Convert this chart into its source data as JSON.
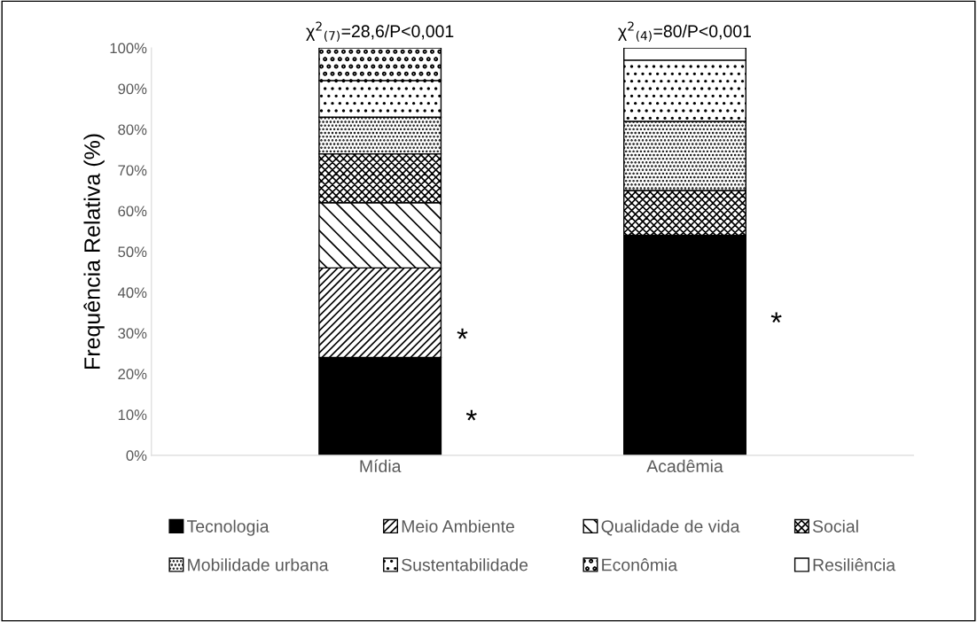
{
  "chart_data": {
    "type": "bar",
    "stacked": true,
    "ylabel": "Frequência Relativa (%)",
    "categories": [
      "Mídia",
      "Acadêmia"
    ],
    "series": [
      {
        "name": "Tecnologia",
        "color": "#000000",
        "values": [
          24,
          54
        ]
      },
      {
        "name": "Meio Ambiente",
        "color": "#000000",
        "values": [
          22,
          null
        ]
      },
      {
        "name": "Qualidade de vida",
        "color": "#000000",
        "values": [
          16,
          null
        ]
      },
      {
        "name": "Social",
        "color": "#000000",
        "values": [
          12,
          11
        ]
      },
      {
        "name": "Mobilidade urbana",
        "color": "#000000",
        "values": [
          9,
          17
        ]
      },
      {
        "name": "Sustentabilidade",
        "color": "#000000",
        "values": [
          9,
          15
        ]
      },
      {
        "name": "Econômia",
        "color": "#000000",
        "values": [
          8,
          null
        ]
      },
      {
        "name": "Resiliência",
        "color": "#ffffff",
        "values": [
          null,
          3
        ]
      }
    ],
    "ylim": [
      0,
      100
    ],
    "yticks": [
      {
        "value": 0,
        "label": "0%"
      },
      {
        "value": 10,
        "label": "10%"
      },
      {
        "value": 20,
        "label": "20%"
      },
      {
        "value": 30,
        "label": "30%"
      },
      {
        "value": 40,
        "label": "40%"
      },
      {
        "value": 50,
        "label": "50%"
      },
      {
        "value": 60,
        "label": "60%"
      },
      {
        "value": 70,
        "label": "70%"
      },
      {
        "value": 80,
        "label": "80%"
      },
      {
        "value": 90,
        "label": "90%"
      },
      {
        "value": 100,
        "label": "100%"
      }
    ],
    "annotations": [
      {
        "text": "χ$^{2}$$_{(7)}$=28,6/P<0,001",
        "x": "Mídia",
        "y": 100
      },
      {
        "text": "χ$^{2}$$_{(4)}$=80/P<0,001",
        "x": "Acadêmia",
        "y": 100
      },
      "*",
      "*",
      "*"
    ],
    "grid": false,
    "legend": "bottom"
  }
}
